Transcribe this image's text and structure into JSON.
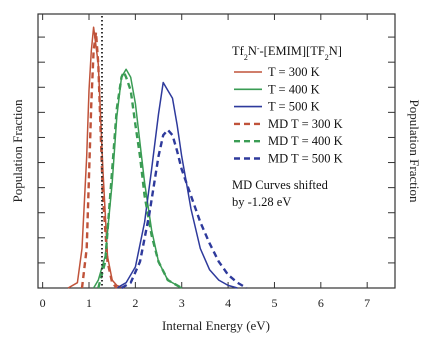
{
  "chart_data": {
    "type": "line",
    "title": "",
    "xlabel": "Internal Energy (eV)",
    "ylabel": "Population Fraction",
    "ylabel_right": "Population Fraction",
    "xlim": [
      -0.1,
      7.6
    ],
    "ylim": [
      0,
      1.04
    ],
    "x_ticks": [
      0,
      1,
      2,
      3,
      4,
      5,
      6,
      7
    ],
    "x_tick_labels": [
      "0",
      "1",
      "2",
      "3",
      "4",
      "5",
      "6",
      "7"
    ],
    "y_tick_labels_shown": false,
    "grid": false,
    "legend_title_html": "Tf<tspan baseline-shift=\"sub\" font-size=\"8\">2</tspan>N<tspan baseline-shift=\"super\" font-size=\"8\">-</tspan>-[EMIM][TF<tspan baseline-shift=\"sub\" font-size=\"8\">2</tspan>N]",
    "legend_placement": "top-right",
    "annotation_lines": [
      "MD Curves shifted",
      "by -1.28 eV"
    ],
    "series": [
      {
        "name": "T = 300 K",
        "color": "#c0533a",
        "dash": "solid",
        "x": [
          0.55,
          0.75,
          0.85,
          0.95,
          1.0,
          1.05,
          1.1,
          1.2,
          1.3,
          1.4,
          1.5,
          1.6,
          1.75
        ],
        "y": [
          0.0,
          0.02,
          0.15,
          0.5,
          0.75,
          0.9,
          0.99,
          0.85,
          0.45,
          0.12,
          0.03,
          0.01,
          0.0
        ]
      },
      {
        "name": "T = 400 K",
        "color": "#3a9c54",
        "dash": "solid",
        "x": [
          1.1,
          1.2,
          1.35,
          1.5,
          1.6,
          1.7,
          1.8,
          1.9,
          2.0,
          2.1,
          2.2,
          2.35,
          2.5,
          2.7,
          3.0
        ],
        "y": [
          0.0,
          0.03,
          0.12,
          0.4,
          0.65,
          0.8,
          0.83,
          0.8,
          0.7,
          0.55,
          0.4,
          0.22,
          0.1,
          0.03,
          0.0
        ]
      },
      {
        "name": "T = 500 K",
        "color": "#2e3a9c",
        "dash": "solid",
        "x": [
          1.6,
          1.8,
          2.0,
          2.2,
          2.35,
          2.5,
          2.6,
          2.7,
          2.8,
          2.9,
          3.0,
          3.1,
          3.2,
          3.4,
          3.6,
          3.8,
          4.0,
          4.2
        ],
        "y": [
          0.0,
          0.02,
          0.08,
          0.25,
          0.45,
          0.66,
          0.78,
          0.75,
          0.72,
          0.62,
          0.5,
          0.4,
          0.3,
          0.15,
          0.07,
          0.03,
          0.01,
          0.0
        ]
      },
      {
        "name": "MD T = 300 K",
        "color": "#c0533a",
        "dash": "dash",
        "x": [
          0.85,
          0.95,
          1.05,
          1.1,
          1.15,
          1.2,
          1.25,
          1.3,
          1.4,
          1.5,
          1.6
        ],
        "y": [
          0.0,
          0.15,
          0.7,
          0.9,
          0.97,
          0.85,
          0.6,
          0.35,
          0.1,
          0.02,
          0.0
        ]
      },
      {
        "name": "MD T = 400 K",
        "color": "#3a9c54",
        "dash": "dash",
        "x": [
          1.2,
          1.35,
          1.5,
          1.6,
          1.7,
          1.75,
          1.8,
          1.9,
          2.0,
          2.1,
          2.2,
          2.35,
          2.5,
          2.7,
          3.0
        ],
        "y": [
          0.0,
          0.1,
          0.45,
          0.68,
          0.8,
          0.82,
          0.8,
          0.75,
          0.62,
          0.5,
          0.35,
          0.2,
          0.1,
          0.03,
          0.0
        ]
      },
      {
        "name": "MD T = 500 K",
        "color": "#2e3a9c",
        "dash": "dash",
        "x": [
          1.7,
          1.9,
          2.1,
          2.3,
          2.5,
          2.6,
          2.7,
          2.8,
          2.9,
          3.0,
          3.2,
          3.4,
          3.6,
          3.8,
          4.0,
          4.2,
          4.4
        ],
        "y": [
          0.0,
          0.02,
          0.1,
          0.28,
          0.5,
          0.58,
          0.6,
          0.58,
          0.52,
          0.45,
          0.35,
          0.25,
          0.17,
          0.1,
          0.05,
          0.02,
          0.0
        ]
      }
    ],
    "reference_line": {
      "x": 1.28,
      "color": "#333333",
      "style": "dotted"
    }
  }
}
